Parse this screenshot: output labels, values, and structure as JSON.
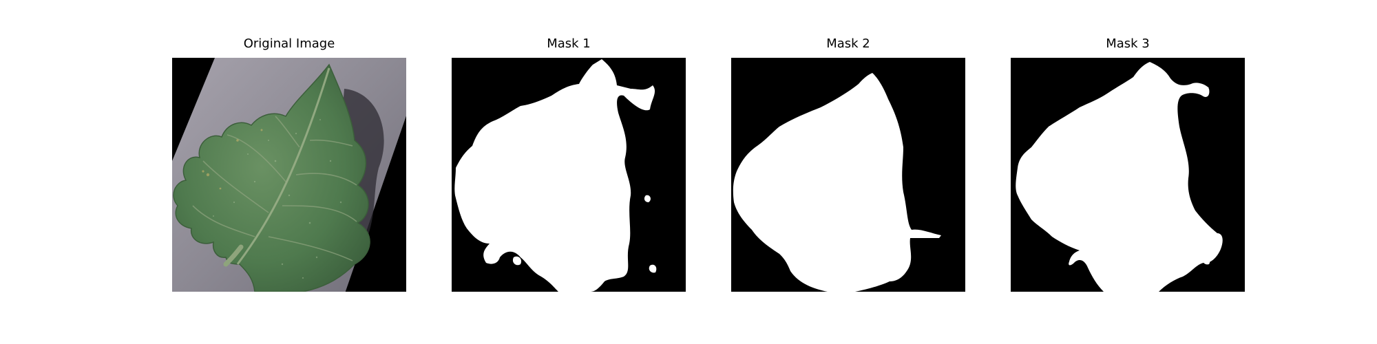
{
  "figure": {
    "panels": [
      {
        "title": "Original Image",
        "kind": "photo",
        "subject": "tomato-leaf"
      },
      {
        "title": "Mask 1",
        "kind": "mask"
      },
      {
        "title": "Mask 2",
        "kind": "mask"
      },
      {
        "title": "Mask 3",
        "kind": "mask"
      }
    ]
  },
  "colors": {
    "background": "#ffffff",
    "mask_fill": "#ffffff",
    "mask_background": "#000000",
    "leaf_green": "#4f7a4e",
    "surface_gray": "#8f8c95"
  }
}
